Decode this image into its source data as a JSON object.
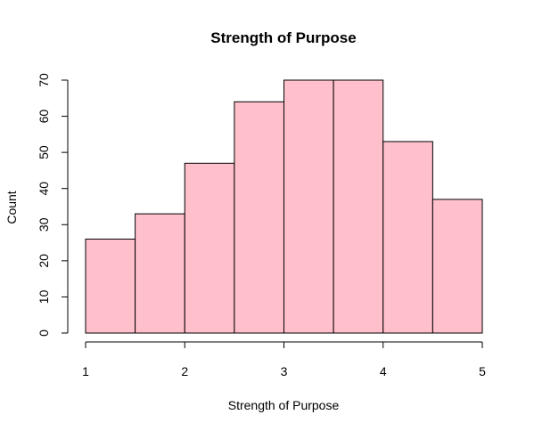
{
  "chart_data": {
    "type": "bar",
    "title": "Strength of Purpose",
    "xlabel": "Strength of Purpose",
    "ylabel": "Count",
    "bins": [
      [
        1.0,
        1.5
      ],
      [
        1.5,
        2.0
      ],
      [
        2.0,
        2.5
      ],
      [
        2.5,
        3.0
      ],
      [
        3.0,
        3.5
      ],
      [
        3.5,
        4.0
      ],
      [
        4.0,
        4.5
      ],
      [
        4.5,
        5.0
      ]
    ],
    "values": [
      26,
      33,
      47,
      64,
      70,
      70,
      53,
      37
    ],
    "xlim": [
      1,
      5
    ],
    "ylim": [
      0,
      70
    ],
    "x_ticks": [
      "1",
      "2",
      "3",
      "4",
      "5"
    ],
    "y_ticks": [
      "0",
      "10",
      "20",
      "30",
      "40",
      "50",
      "60",
      "70"
    ],
    "bar_color": "#FFC0CB",
    "grid": false,
    "legend": "none"
  }
}
